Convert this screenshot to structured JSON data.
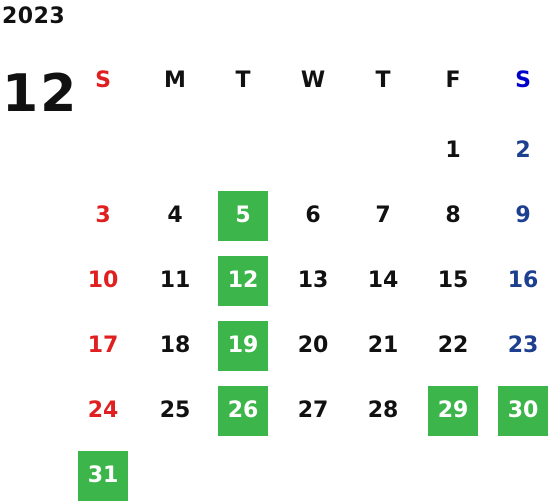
{
  "year": "2023",
  "month": "12",
  "colors": {
    "sunday": "#e02020",
    "saturday_header": "#0000cc",
    "saturday": "#1d3f8f",
    "highlight_bg": "#3cb54a",
    "highlight_text": "#ffffff",
    "weekday_text": "#111111"
  },
  "weekdays": [
    "S",
    "M",
    "T",
    "W",
    "T",
    "F",
    "S"
  ],
  "first_weekday_index": 5,
  "days": [
    "1",
    "2",
    "3",
    "4",
    "5",
    "6",
    "7",
    "8",
    "9",
    "10",
    "11",
    "12",
    "13",
    "14",
    "15",
    "16",
    "17",
    "18",
    "19",
    "20",
    "21",
    "22",
    "23",
    "24",
    "25",
    "26",
    "27",
    "28",
    "29",
    "30",
    "31"
  ],
  "highlighted_days": [
    "5",
    "12",
    "19",
    "26",
    "29",
    "30",
    "31"
  ]
}
